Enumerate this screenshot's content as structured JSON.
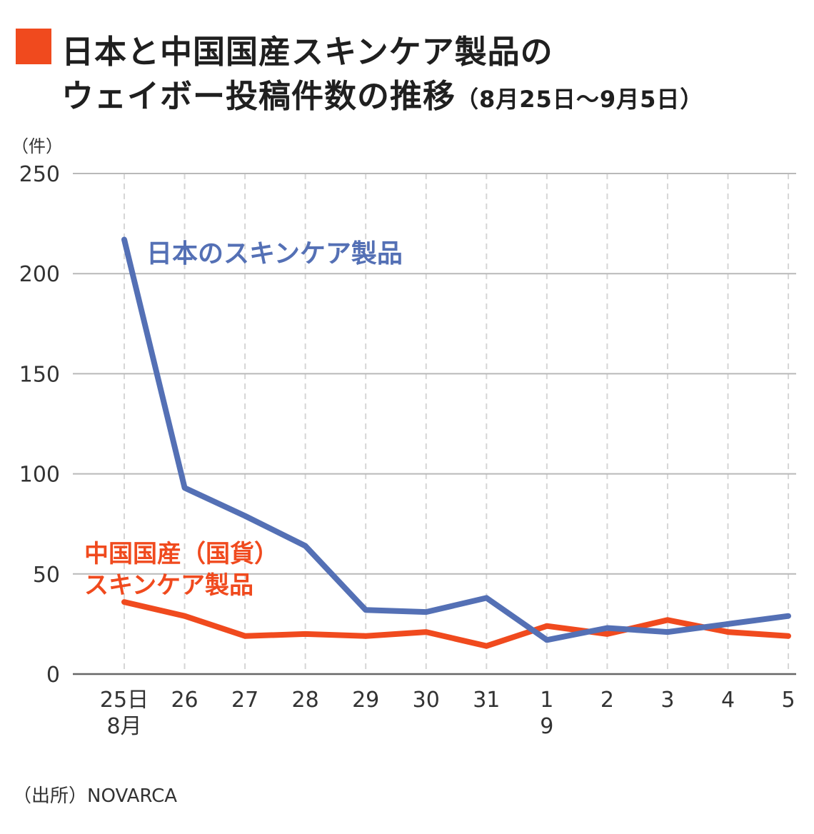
{
  "title": {
    "line1": "日本と中国国産スキンケア製品の",
    "line2": "ウェイボー投稿件数の推移",
    "line2_sub": "（8月25日〜9月5日）",
    "marker_color": "#f04a1e"
  },
  "source": "（出所）NOVARCA",
  "chart_data": {
    "type": "line",
    "ylabel": "（件）",
    "ylim": [
      0,
      250
    ],
    "yticks": [
      0,
      50,
      100,
      150,
      200,
      250
    ],
    "grid": true,
    "categories": [
      "25日",
      "26",
      "27",
      "28",
      "29",
      "30",
      "31",
      "1",
      "2",
      "3",
      "4",
      "5"
    ],
    "month_labels": [
      {
        "category_index": 0,
        "label": "8月"
      },
      {
        "category_index": 7,
        "label": "9"
      }
    ],
    "series": [
      {
        "name": "日本のスキンケア製品",
        "color": "#5470b5",
        "values": [
          217,
          93,
          79,
          64,
          32,
          31,
          38,
          17,
          23,
          21,
          25,
          29
        ]
      },
      {
        "name": "中国国産（国貨）スキンケア製品",
        "label_lines": [
          "中国国産（国貨）",
          "スキンケア製品"
        ],
        "color": "#f04a1e",
        "values": [
          36,
          29,
          19,
          20,
          19,
          21,
          14,
          24,
          20,
          27,
          21,
          19
        ]
      }
    ]
  }
}
